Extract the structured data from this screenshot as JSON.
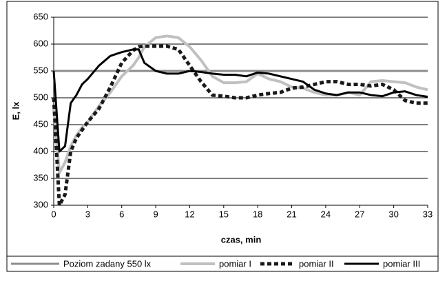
{
  "chart_data": {
    "type": "line",
    "x_label": "czas, min",
    "y_label": "E, lx",
    "x": [
      0,
      0.5,
      1,
      1.5,
      2,
      2.5,
      3,
      4,
      5,
      6,
      7,
      7.5,
      8,
      9,
      10,
      11,
      12,
      13,
      14,
      15,
      16,
      17,
      18,
      19,
      20,
      21,
      22,
      23,
      24,
      25,
      26,
      27,
      28,
      29,
      30,
      31,
      32,
      33
    ],
    "series": [
      {
        "name": "Poziom zadany 550 lx",
        "color": "#8c8c8c",
        "width": 3,
        "dash": "none",
        "values": [
          550,
          550,
          550,
          550,
          550,
          550,
          550,
          550,
          550,
          550,
          550,
          550,
          550,
          550,
          550,
          550,
          550,
          550,
          550,
          550,
          550,
          550,
          550,
          550,
          550,
          550,
          550,
          550,
          550,
          550,
          550,
          550,
          550,
          550,
          550,
          550,
          550,
          550
        ]
      },
      {
        "name": "pomiar I",
        "color": "#c0c0c0",
        "width": 4,
        "dash": "none",
        "values": [
          480,
          360,
          380,
          410,
          430,
          445,
          455,
          485,
          510,
          540,
          560,
          575,
          595,
          612,
          615,
          612,
          595,
          570,
          540,
          528,
          528,
          530,
          545,
          535,
          530,
          520,
          518,
          510,
          505,
          505,
          510,
          505,
          530,
          532,
          530,
          528,
          520,
          515
        ]
      },
      {
        "name": "pomiar II",
        "color": "#1a1a1a",
        "width": 5,
        "dash": "6 4",
        "values": [
          500,
          300,
          320,
          400,
          425,
          440,
          455,
          480,
          520,
          565,
          588,
          595,
          596,
          596,
          596,
          590,
          560,
          530,
          505,
          503,
          500,
          500,
          505,
          508,
          510,
          518,
          520,
          525,
          530,
          530,
          525,
          525,
          522,
          525,
          515,
          495,
          490,
          490
        ]
      },
      {
        "name": "pomiar III",
        "color": "#000000",
        "width": 3,
        "dash": "none",
        "values": [
          550,
          400,
          410,
          490,
          505,
          525,
          535,
          560,
          578,
          585,
          590,
          590,
          565,
          550,
          545,
          545,
          550,
          548,
          545,
          543,
          543,
          540,
          547,
          545,
          540,
          535,
          530,
          515,
          508,
          505,
          510,
          510,
          505,
          503,
          510,
          512,
          505,
          502
        ]
      }
    ],
    "xlim": [
      0,
      33
    ],
    "xticks": [
      0,
      3,
      6,
      9,
      12,
      15,
      18,
      21,
      24,
      27,
      30,
      33
    ],
    "ylim": [
      300,
      650
    ],
    "yticks": [
      300,
      350,
      400,
      450,
      500,
      550,
      600,
      650
    ],
    "grid": true,
    "legend": "bottom"
  }
}
